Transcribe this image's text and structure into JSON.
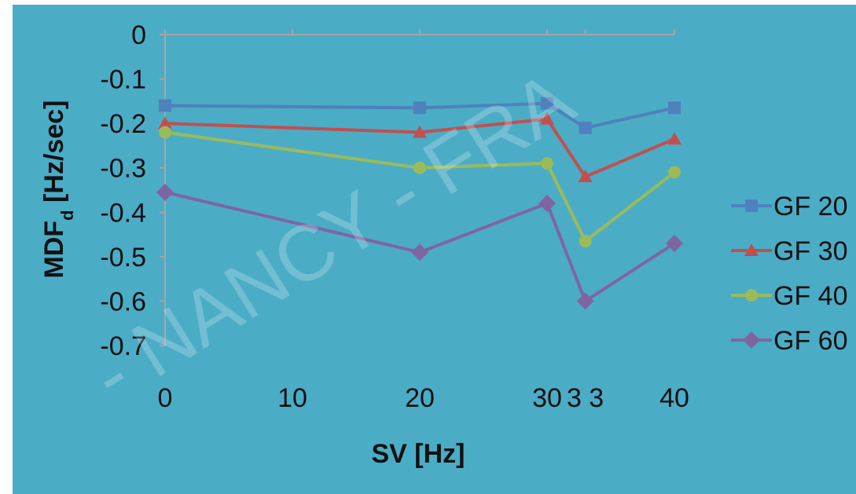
{
  "chart_data": {
    "type": "line",
    "xlabel": "SV [Hz]",
    "ylabel_main": "MDF",
    "ylabel_sub": "d",
    "ylabel_tail": " [Hz/sec]",
    "xlim": [
      0,
      40
    ],
    "ylim": [
      -0.7,
      0
    ],
    "x_ticks": [
      {
        "value": 0,
        "label": "0"
      },
      {
        "value": 10,
        "label": "10"
      },
      {
        "value": 20,
        "label": "20"
      },
      {
        "value": 30,
        "label": "30"
      },
      {
        "value": 33,
        "label": "3 3"
      },
      {
        "value": 40,
        "label": "40"
      }
    ],
    "y_ticks": [
      {
        "value": 0,
        "label": "0"
      },
      {
        "value": -0.1,
        "label": "-0.1"
      },
      {
        "value": -0.2,
        "label": "-0.2"
      },
      {
        "value": -0.3,
        "label": "-0.3"
      },
      {
        "value": -0.4,
        "label": "-0.4"
      },
      {
        "value": -0.5,
        "label": "-0.5"
      },
      {
        "value": -0.6,
        "label": "-0.6"
      },
      {
        "value": -0.7,
        "label": "-0.7"
      }
    ],
    "x": [
      0,
      20,
      30,
      33,
      40
    ],
    "series": [
      {
        "name": "GF 20",
        "color": "#4f81bd",
        "marker": "square",
        "values": [
          -0.16,
          -0.165,
          -0.155,
          -0.21,
          -0.165
        ]
      },
      {
        "name": "GF 30",
        "color": "#c0504d",
        "marker": "triangle",
        "values": [
          -0.2,
          -0.22,
          -0.19,
          -0.32,
          -0.235
        ]
      },
      {
        "name": "GF 40",
        "color": "#9bbb59",
        "marker": "circle",
        "values": [
          -0.22,
          -0.3,
          -0.29,
          -0.465,
          -0.31
        ]
      },
      {
        "name": "GF 60",
        "color": "#8064a2",
        "marker": "diamond",
        "values": [
          -0.355,
          -0.49,
          -0.38,
          -0.6,
          -0.47
        ]
      }
    ],
    "grid": false,
    "legend_position": "right",
    "axis_color": "#a6a6a6"
  },
  "watermark": {
    "text": "- NANCY - FRA"
  }
}
